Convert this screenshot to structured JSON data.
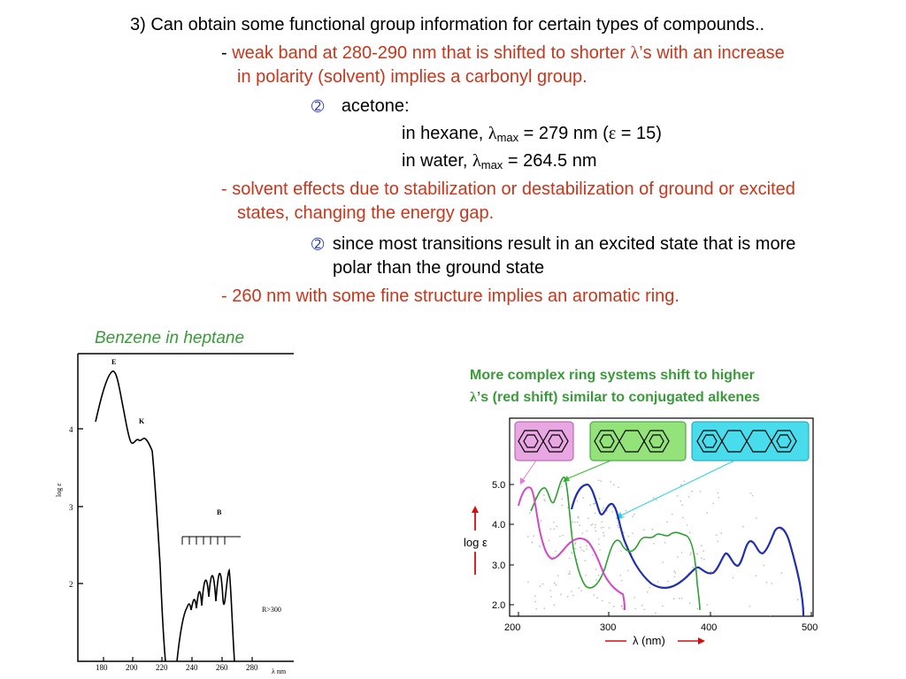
{
  "heading": "3) Can obtain some functional group information for certain types of compounds..",
  "point1": {
    "dash": "- ",
    "line1": "weak band at 280-290 nm that is shifted to shorter ",
    "lambda": "λ",
    "line1_end": "’s with an increase",
    "line2": "in polarity (solvent) implies a carbonyl group."
  },
  "acetone": {
    "bullet": "➁",
    "label": "acetone:",
    "hexane_prefix": "in hexane, ",
    "lambda": "λ",
    "max": "max",
    "hexane_value": " = 279 nm (",
    "epsilon": "ε",
    "hexane_eps": " = 15)",
    "water_prefix": "in water, ",
    "water_value": " = 264.5 nm"
  },
  "point2": {
    "line1": "- solvent effects due to stabilization or destabilization of ground or excited",
    "line2": "states, changing the energy gap."
  },
  "sub_bullet": {
    "bullet": "➁",
    "line1": "since most transitions result in an excited state that is more",
    "line2": "polar than the ground state"
  },
  "point3": "- 260 nm with some fine structure implies an aromatic ring.",
  "benzene_caption": "Benzene in heptane",
  "benzene_plot": {
    "y_ticks": [
      "4",
      "3",
      "2"
    ],
    "y_label": "log ε",
    "x_ticks": [
      "180",
      "200",
      "220",
      "240",
      "260",
      "280"
    ],
    "x_label": "λ  nm",
    "band_labels": [
      "E",
      "K",
      "B"
    ],
    "r_label": "R>300"
  },
  "ring_caption": {
    "line1": "More complex ring systems shift to higher",
    "lambda": "λ",
    "line2": "’s (red shift) similar to conjugated alkenes"
  },
  "ring_plot": {
    "y_ticks": [
      "5.0",
      "4.0",
      "3.0",
      "2.0"
    ],
    "y_label": "log ε",
    "x_ticks": [
      "200",
      "300",
      "400",
      "500"
    ],
    "x_label": "λ (nm)",
    "colors": {
      "naphthalene": "#e07ad8",
      "anthracene": "#3ab83a",
      "tetracene": "#2ad0e0",
      "tetracene_curve": "#1f2fb0"
    }
  }
}
